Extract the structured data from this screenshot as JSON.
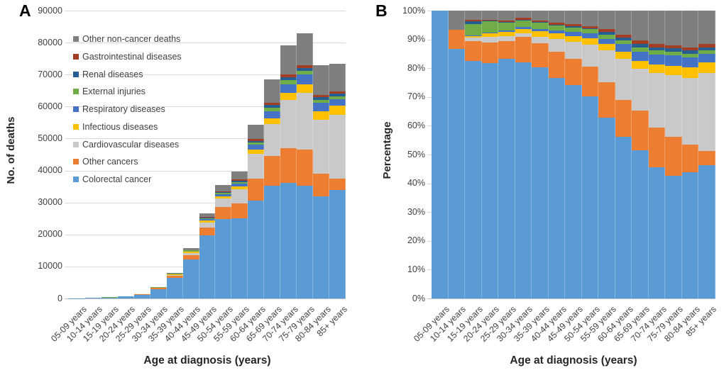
{
  "figure": {
    "panel_a": {
      "letter": "A",
      "y_axis_title": "No. of deaths",
      "x_axis_title": "Age at diagnosis (years)"
    },
    "panel_b": {
      "letter": "B",
      "y_axis_title": "Percentage",
      "x_axis_title": "Age at diagnosis (years)"
    }
  },
  "chart_data": [
    {
      "type": "bar",
      "panel": "A",
      "stacked": "absolute",
      "ylabel": "No. of deaths",
      "xlabel": "Age at diagnosis (years)",
      "ylim": [
        0,
        90000
      ],
      "grid": true,
      "legend_position": "upper-left",
      "yticks": {
        "values": [
          0,
          10000,
          20000,
          30000,
          40000,
          50000,
          60000,
          70000,
          80000,
          90000
        ],
        "labels": [
          "0",
          "10000",
          "20000",
          "30000",
          "40000",
          "50000",
          "60000",
          "70000",
          "80000",
          "90000"
        ]
      },
      "categories": [
        "05-09 years",
        "10-14 years",
        "15-19 years",
        "20-24 years",
        "25-29 years",
        "30-34 years",
        "35-39 years",
        "40-44 years",
        "45-49 years",
        "50-54 years",
        "55-59 years",
        "60-64 years",
        "65-69 years",
        "70-74 years",
        "75-79 years",
        "80-84 years",
        "85+ years"
      ],
      "series": [
        {
          "name": "Colorectal cancer",
          "color": "#5B9BD5",
          "values": [
            50,
            130,
            289,
            572,
            1166,
            2956,
            6416,
            12119,
            19785,
            24815,
            24932,
            30573,
            35226,
            36115,
            35233,
            31930,
            33938
          ]
        },
        {
          "name": "Other cancers",
          "color": "#ED7D31",
          "values": [
            0,
            10,
            24,
            50,
            84,
            313,
            680,
            1422,
            2456,
            3717,
            4843,
            6909,
            9371,
            10930,
            11357,
            6998,
            3592
          ]
        },
        {
          "name": "Cardiovascular diseases",
          "color": "#C9C9C9",
          "values": [
            0,
            0,
            4,
            15,
            27,
            43,
            176,
            711,
            1549,
            2655,
            4407,
            7779,
            9918,
            14969,
            17658,
            16986,
            19938
          ]
        },
        {
          "name": "Infectious diseases",
          "color": "#FFC000",
          "values": [
            0,
            0,
            2,
            7,
            20,
            58,
            160,
            300,
            561,
            779,
            873,
            1360,
            1847,
            2297,
            2736,
            2552,
            2712
          ]
        },
        {
          "name": "Respiratory diseases",
          "color": "#4472C4",
          "values": [
            0,
            0,
            1,
            2,
            6,
            29,
            64,
            158,
            374,
            637,
            754,
            1469,
            2257,
            2693,
            3067,
            2624,
            2052
          ]
        },
        {
          "name": "External injuries",
          "color": "#70AD47",
          "values": [
            0,
            0,
            14,
            28,
            39,
            76,
            176,
            284,
            427,
            496,
            516,
            653,
            1094,
            1188,
            995,
            875,
            880
          ]
        },
        {
          "name": "Renal diseases",
          "color": "#255E91",
          "values": [
            0,
            0,
            3,
            1,
            4,
            11,
            8,
            32,
            80,
            142,
            397,
            544,
            752,
            950,
            995,
            948,
            880
          ]
        },
        {
          "name": "Gastrointestinal diseases",
          "color": "#A33E24",
          "values": [
            0,
            0,
            2,
            2,
            6,
            22,
            48,
            126,
            214,
            283,
            476,
            598,
            821,
            871,
            829,
            729,
            806
          ]
        },
        {
          "name": "Other non-cancer deaths",
          "color": "#7F7F7F",
          "values": [
            0,
            10,
            11,
            23,
            48,
            92,
            272,
            648,
            1254,
            1876,
            2502,
            4515,
            7114,
            9187,
            10030,
            9258,
            8502
          ]
        }
      ],
      "legend_order_top_to_bottom": [
        "Other non-cancer deaths",
        "Gastrointestinal diseases",
        "Renal diseases",
        "External injuries",
        "Respiratory diseases",
        "Infectious diseases",
        "Cardiovascular diseases",
        "Other cancers",
        "Colorectal cancer"
      ]
    },
    {
      "type": "bar",
      "panel": "B",
      "stacked": "percent",
      "ylabel": "Percentage",
      "xlabel": "Age at diagnosis (years)",
      "ylim": [
        0,
        100
      ],
      "grid": true,
      "series_ref": 0,
      "note": "Same nine series as panel A, each age group normalized to 100%",
      "yticks": {
        "values": [
          0,
          10,
          20,
          30,
          40,
          50,
          60,
          70,
          80,
          90,
          100
        ],
        "labels": [
          "0%",
          "10%",
          "20%",
          "30%",
          "40%",
          "50%",
          "60%",
          "70%",
          "80%",
          "90%",
          "100%"
        ]
      },
      "categories": [
        "05-09 years",
        "10-14 years",
        "15-19 years",
        "20-24 years",
        "25-29 years",
        "30-34 years",
        "35-39 years",
        "40-44 years",
        "45-49 years",
        "50-54 years",
        "55-59 years",
        "60-64 years",
        "65-69 years",
        "70-74 years",
        "75-79 years",
        "80-84 years",
        "85+ years"
      ]
    }
  ]
}
